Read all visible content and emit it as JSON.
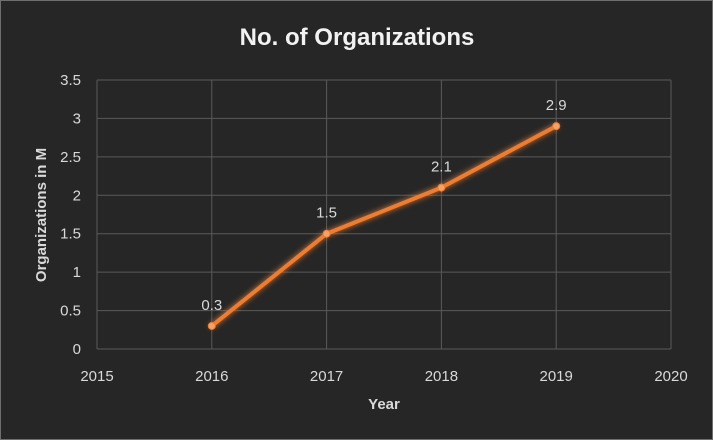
{
  "chart_data": {
    "type": "line",
    "title": "No. of Organizations",
    "xlabel": "Year",
    "ylabel": "Organizations in M",
    "xlim": [
      2015,
      2020
    ],
    "ylim": [
      0,
      3.5
    ],
    "x_ticks": [
      2015,
      2016,
      2017,
      2018,
      2019,
      2020
    ],
    "y_ticks": [
      0,
      0.5,
      1,
      1.5,
      2,
      2.5,
      3,
      3.5
    ],
    "grid": true,
    "legend": "none",
    "data_labels": true,
    "series": [
      {
        "x": [
          2016,
          2017,
          2018,
          2019
        ],
        "y": [
          0.3,
          1.5,
          2.1,
          2.9
        ],
        "color": "#ed7d31"
      }
    ]
  }
}
